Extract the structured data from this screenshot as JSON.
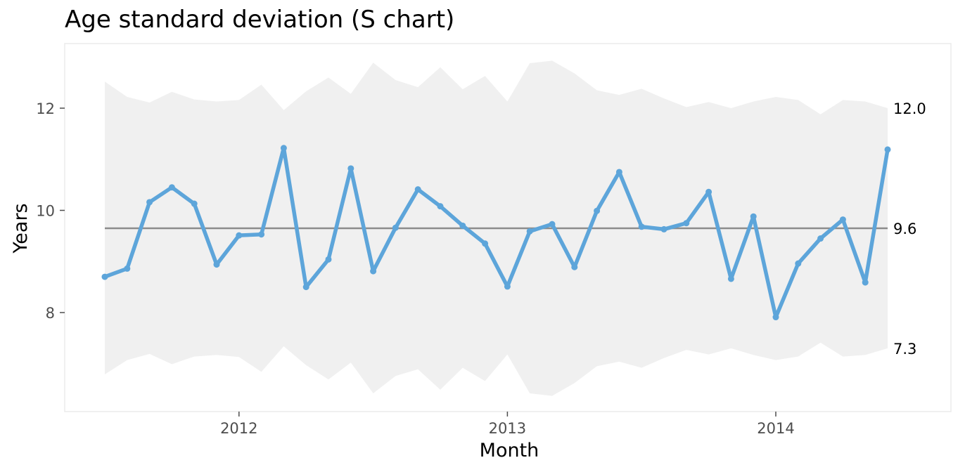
{
  "chart_data": {
    "type": "line",
    "title": "Age standard deviation (S chart)",
    "xlabel": "Month",
    "ylabel": "Years",
    "x_ticks": [
      "2012",
      "2013",
      "2014"
    ],
    "y_ticks": [
      8,
      10,
      12
    ],
    "ylim": [
      6.0,
      13.2
    ],
    "grid": false,
    "x": [
      "2011-07",
      "2011-08",
      "2011-09",
      "2011-10",
      "2011-11",
      "2011-12",
      "2012-01",
      "2012-02",
      "2012-03",
      "2012-04",
      "2012-05",
      "2012-06",
      "2012-07",
      "2012-08",
      "2012-09",
      "2012-10",
      "2012-11",
      "2012-12",
      "2013-01",
      "2013-02",
      "2013-03",
      "2013-04",
      "2013-05",
      "2013-06",
      "2013-07",
      "2013-08",
      "2013-09",
      "2013-10",
      "2013-11",
      "2013-12",
      "2014-01",
      "2014-02",
      "2014-03",
      "2014-04",
      "2014-05",
      "2014-06"
    ],
    "series": [
      {
        "role": "sd",
        "color": "#5da5da",
        "values": [
          8.7,
          8.86,
          10.16,
          10.45,
          10.13,
          8.94,
          9.51,
          9.53,
          11.22,
          8.5,
          9.04,
          10.82,
          8.81,
          9.66,
          10.41,
          10.08,
          9.7,
          9.35,
          8.51,
          9.59,
          9.73,
          8.89,
          9.99,
          10.75,
          9.68,
          9.63,
          9.75,
          10.36,
          8.66,
          9.88,
          7.91,
          8.96,
          9.45,
          9.82,
          8.59,
          11.19
        ]
      }
    ],
    "center_line": {
      "value": 9.65,
      "label": "9.6",
      "color": "#8c8c8c"
    },
    "control_limits": {
      "fill": "#f0f0f0",
      "upper": [
        12.52,
        12.22,
        12.11,
        12.32,
        12.17,
        12.13,
        12.16,
        12.46,
        11.96,
        12.33,
        12.6,
        12.28,
        12.89,
        12.55,
        12.41,
        12.8,
        12.37,
        12.63,
        12.13,
        12.88,
        12.93,
        12.68,
        12.35,
        12.26,
        12.38,
        12.19,
        12.02,
        12.12,
        12.0,
        12.13,
        12.22,
        12.16,
        11.88,
        12.16,
        12.13,
        12.0
      ],
      "lower": [
        6.79,
        7.07,
        7.19,
        6.99,
        7.14,
        7.17,
        7.13,
        6.84,
        7.34,
        6.97,
        6.69,
        7.02,
        6.42,
        6.76,
        6.89,
        6.49,
        6.92,
        6.66,
        7.18,
        6.42,
        6.37,
        6.62,
        6.95,
        7.04,
        6.92,
        7.11,
        7.27,
        7.18,
        7.3,
        7.17,
        7.07,
        7.14,
        7.41,
        7.14,
        7.17,
        7.3
      ],
      "upper_label": "12.0",
      "lower_label": "7.3"
    }
  }
}
